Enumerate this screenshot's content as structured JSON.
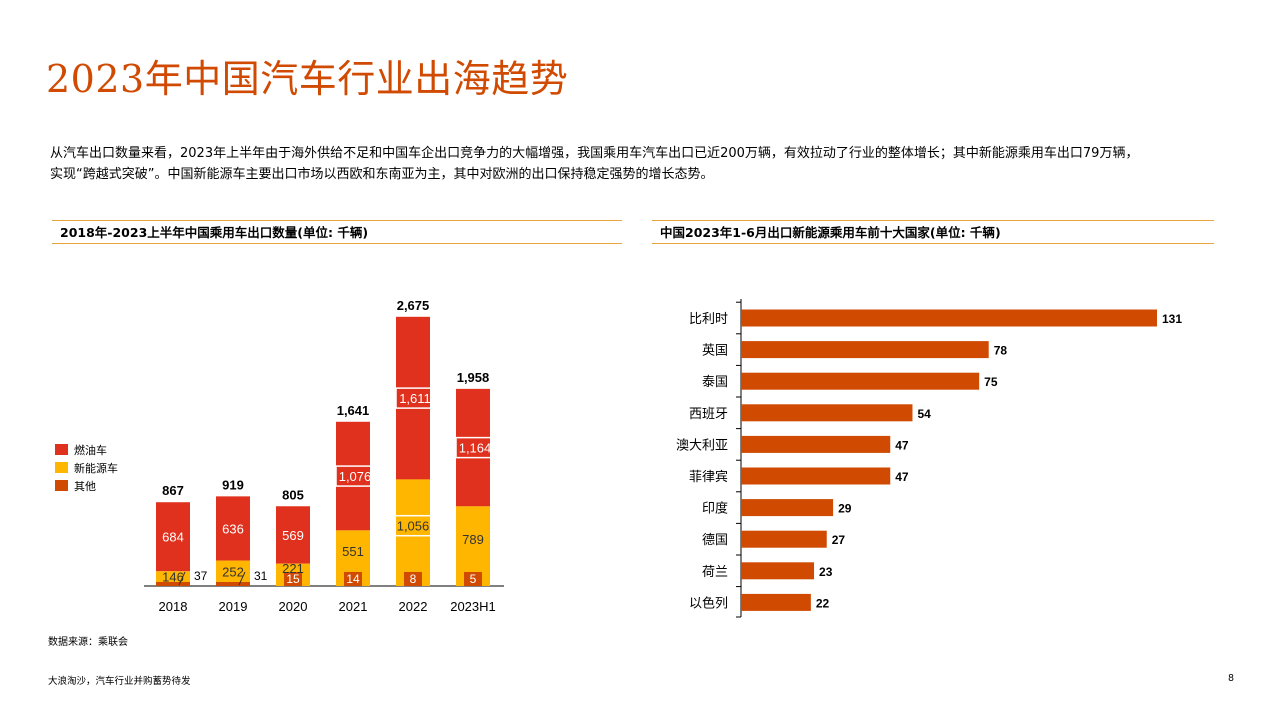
{
  "page": {
    "title": "2023年中国汽车行业出海趋势",
    "intro_line1": "从汽车出口数量来看，2023年上半年由于海外供给不足和中国车企出口竞争力的大幅增强，我国乘用车汽车出口已近200万辆，有效拉动了行业的整体增长；其中新能源乘用车出口79万辆，",
    "intro_line2": "实现“跨越式突破”。中国新能源车主要出口市场以西欧和东南亚为主，其中对欧洲的出口保持稳定强势的增长态势。",
    "source": "数据来源：乘联会",
    "footer": "大浪淘沙，汽车行业并购蓄势待发",
    "page_number": "8"
  },
  "colors": {
    "accent": "#d04a02",
    "rule": "#e8a33c",
    "fuel": "#e0301e",
    "nev": "#ffb600",
    "other": "#d04a02",
    "bar2": "#d04a02"
  },
  "chart_data": [
    {
      "type": "bar",
      "stacked": true,
      "title": "2018年-2023上半年中国乘用车出口数量(单位: 千辆)",
      "categories": [
        "2018",
        "2019",
        "2020",
        "2021",
        "2022",
        "2023H1"
      ],
      "series": [
        {
          "name": "其他",
          "values": [
            37,
            31,
            15,
            14,
            8,
            5
          ]
        },
        {
          "name": "新能源车",
          "values": [
            146,
            252,
            221,
            551,
            1056,
            789
          ]
        },
        {
          "name": "燃油车",
          "values": [
            684,
            636,
            569,
            1076,
            1611,
            1164
          ]
        }
      ],
      "totals": [
        867,
        919,
        805,
        1641,
        2675,
        1958
      ],
      "total_labels": [
        "867",
        "919",
        "805",
        "1,641",
        "2,675",
        "1,958"
      ],
      "segment_labels": {
        "其他": [
          "37",
          "31",
          "15",
          "14",
          "8",
          "5"
        ],
        "新能源车": [
          "146",
          "252",
          "221",
          "551",
          "1,056",
          "789"
        ],
        "燃油车": [
          "684",
          "636",
          "569",
          "1,076",
          "1,611",
          "1,164"
        ]
      },
      "legend": [
        "燃油车",
        "新能源车",
        "其他"
      ],
      "legend_position": "left",
      "ylim": [
        0,
        2675
      ],
      "grid": false
    },
    {
      "type": "bar",
      "orientation": "horizontal",
      "title": "中国2023年1-6月出口新能源乘用车前十大国家(单位: 千辆)",
      "categories": [
        "比利时",
        "英国",
        "泰国",
        "西班牙",
        "澳大利亚",
        "菲律宾",
        "印度",
        "德国",
        "荷兰",
        "以色列"
      ],
      "values": [
        131,
        78,
        75,
        54,
        47,
        47,
        29,
        27,
        23,
        22
      ],
      "xlim": [
        0,
        131
      ],
      "grid": false
    }
  ]
}
